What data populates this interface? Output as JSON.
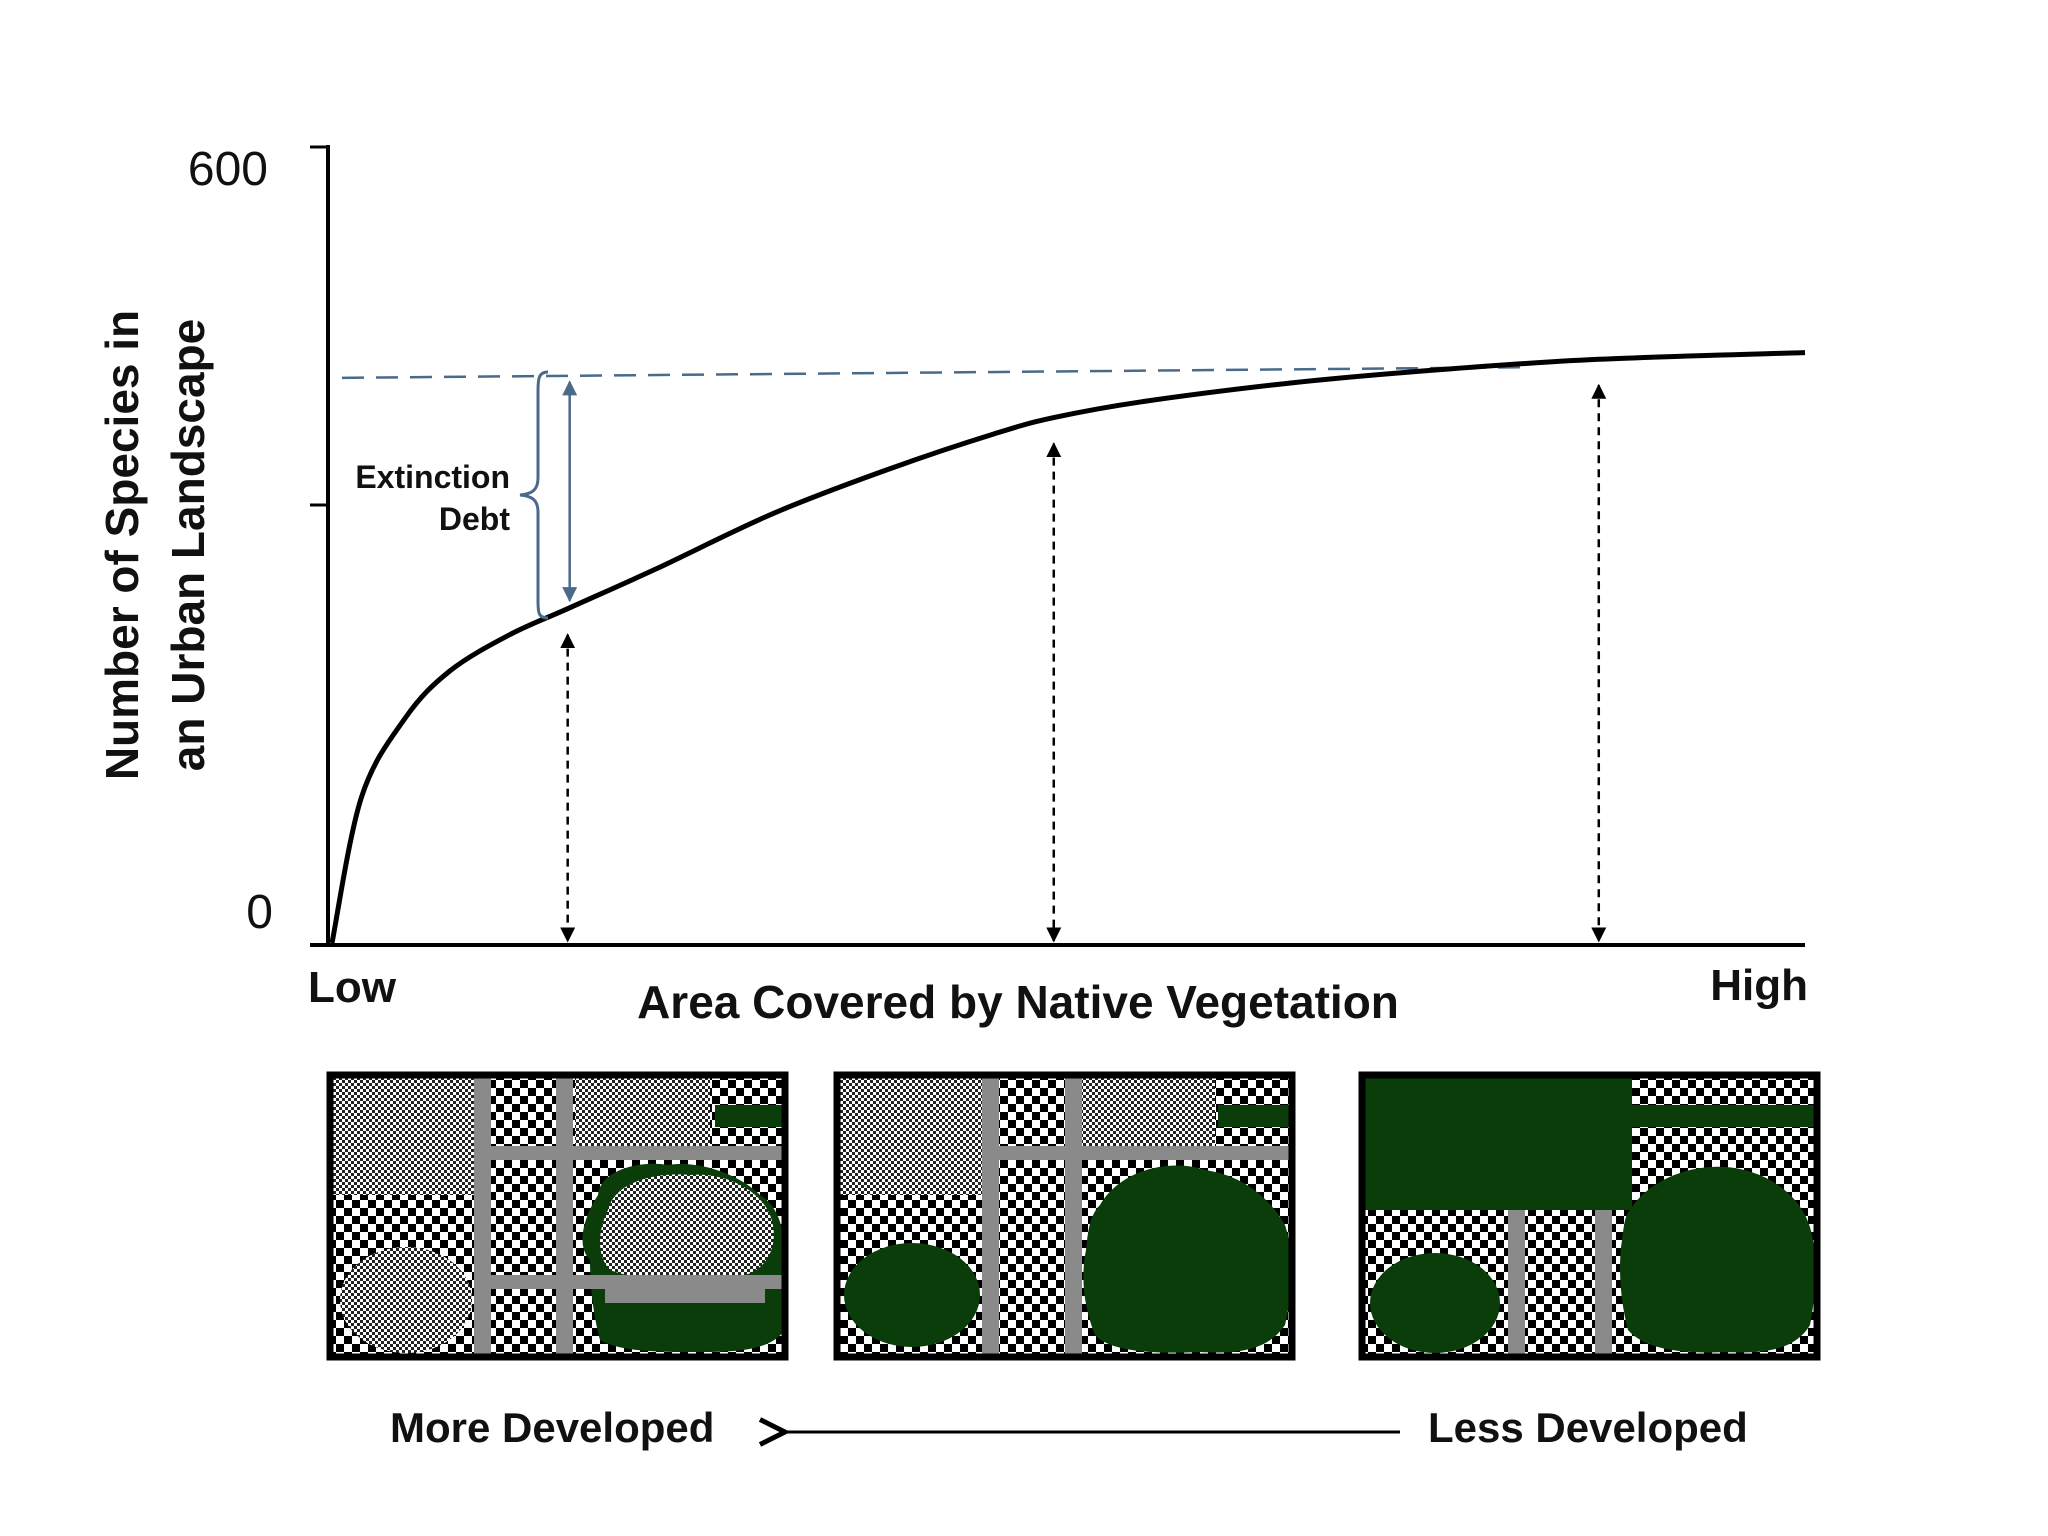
{
  "chart_data": {
    "type": "line",
    "xlabel": "Area Covered by Native Vegetation",
    "ylabel_line1": "Number of Species in",
    "ylabel_line2": "an Urban Landscape",
    "x_tick_low": "Low",
    "x_tick_high": "High",
    "y_ticks": [
      "0",
      "600"
    ],
    "ylim": [
      0,
      600
    ],
    "annotation_line1": "Extinction",
    "annotation_line2": "Debt",
    "series": [
      {
        "values": [
          {
            "x": 0.0,
            "y": 0
          },
          {
            "x": 0.02,
            "y": 110
          },
          {
            "x": 0.05,
            "y": 170
          },
          {
            "x": 0.08,
            "y": 205
          },
          {
            "x": 0.12,
            "y": 232
          },
          {
            "x": 0.16,
            "y": 252
          },
          {
            "x": 0.22,
            "y": 282
          },
          {
            "x": 0.3,
            "y": 324
          },
          {
            "x": 0.38,
            "y": 358
          },
          {
            "x": 0.45,
            "y": 384
          },
          {
            "x": 0.49,
            "y": 396
          },
          {
            "x": 0.55,
            "y": 408
          },
          {
            "x": 0.65,
            "y": 422
          },
          {
            "x": 0.75,
            "y": 432
          },
          {
            "x": 0.86,
            "y": 440
          },
          {
            "x": 1.0,
            "y": 445
          }
        ]
      }
    ],
    "reference_level": 426,
    "marker_x": [
      0.16,
      0.49,
      0.86
    ],
    "grid": false
  },
  "landscape": {
    "left_label": "More Developed",
    "right_label": "Less Developed"
  },
  "colors": {
    "curve": "#000000",
    "reference": "#4a6a8a",
    "vegetation": "#0b3d0b",
    "road": "#8a8a8a",
    "frame": "#000000"
  }
}
